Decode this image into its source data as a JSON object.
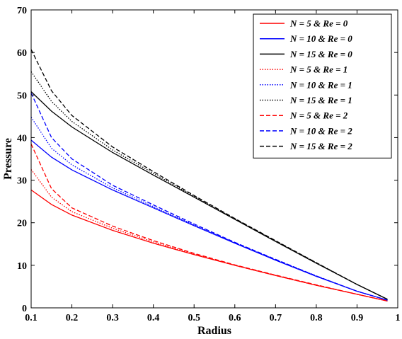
{
  "chart_data": {
    "type": "line",
    "xlabel": "Radius",
    "ylabel": "Pressure",
    "xlim": [
      0.1,
      1
    ],
    "ylim": [
      0,
      70
    ],
    "xticks": [
      "0.1",
      "0.2",
      "0.3",
      "0.4",
      "0.5",
      "0.6",
      "0.7",
      "0.8",
      "0.9",
      "1"
    ],
    "yticks": [
      "0",
      "10",
      "20",
      "30",
      "40",
      "50",
      "60",
      "70"
    ],
    "grid": false,
    "legend_position": "top-right",
    "x": [
      0.1,
      0.15,
      0.2,
      0.3,
      0.4,
      0.5,
      0.6,
      0.7,
      0.8,
      0.9,
      0.975
    ],
    "series": [
      {
        "name": "N = 5   & Re = 0",
        "color": "#ff0000",
        "style": "solid",
        "values": [
          27.7,
          24.3,
          21.8,
          18.2,
          15.2,
          12.5,
          10.0,
          7.6,
          5.3,
          3.2,
          1.6
        ]
      },
      {
        "name": "N = 10 & Re = 0",
        "color": "#0000ff",
        "style": "solid",
        "values": [
          39.4,
          35.4,
          32.4,
          27.7,
          23.5,
          19.3,
          15.2,
          11.2,
          7.4,
          3.9,
          1.8
        ]
      },
      {
        "name": "N = 15 & Re = 0",
        "color": "#000000",
        "style": "solid",
        "values": [
          50.8,
          46.2,
          42.5,
          36.5,
          31.2,
          26.0,
          20.8,
          15.6,
          10.5,
          5.5,
          2.0
        ]
      },
      {
        "name": "N = 5   & Re = 1",
        "color": "#ff0000",
        "style": "dotted",
        "values": [
          32.5,
          26.0,
          22.6,
          18.7,
          15.5,
          12.6,
          10.0,
          7.6,
          5.3,
          3.2,
          1.6
        ]
      },
      {
        "name": "N = 10 & Re = 1",
        "color": "#0000ff",
        "style": "dotted",
        "values": [
          44.8,
          37.5,
          33.6,
          28.2,
          23.8,
          19.5,
          15.3,
          11.3,
          7.5,
          3.9,
          1.8
        ]
      },
      {
        "name": "N = 15 & Re = 1",
        "color": "#000000",
        "style": "dotted",
        "values": [
          55.5,
          48.5,
          43.8,
          37.1,
          31.6,
          26.2,
          20.9,
          15.7,
          10.6,
          5.5,
          2.0
        ]
      },
      {
        "name": "N = 5   & Re = 2",
        "color": "#ff0000",
        "style": "dashed",
        "values": [
          38.5,
          28.0,
          23.5,
          19.2,
          15.8,
          12.8,
          10.1,
          7.7,
          5.4,
          3.2,
          1.6
        ]
      },
      {
        "name": "N = 10 & Re = 2",
        "color": "#0000ff",
        "style": "dashed",
        "values": [
          50.5,
          40.0,
          35.0,
          28.8,
          24.2,
          19.7,
          15.4,
          11.4,
          7.5,
          3.9,
          1.8
        ]
      },
      {
        "name": "N = 15 & Re = 2",
        "color": "#000000",
        "style": "dashed",
        "values": [
          60.7,
          51.0,
          45.2,
          37.8,
          32.0,
          26.4,
          21.0,
          15.8,
          10.6,
          5.5,
          2.0
        ]
      }
    ]
  }
}
